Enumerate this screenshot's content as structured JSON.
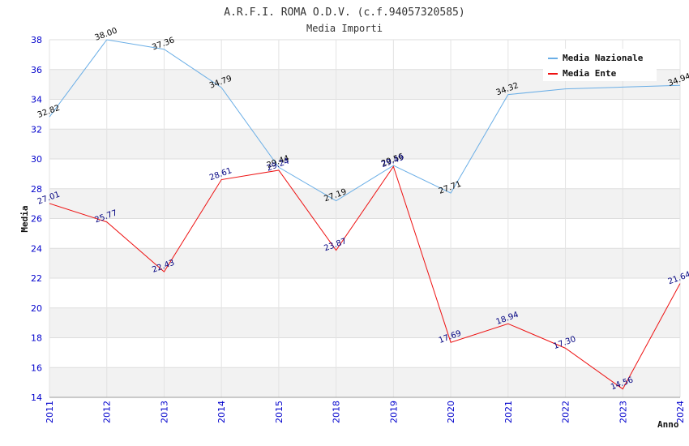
{
  "chart_data": {
    "type": "line",
    "title": "A.R.F.I. ROMA O.D.V. (c.f.94057320585)",
    "subtitle": "Media Importi",
    "xlabel": "Anno",
    "ylabel": "Media",
    "ylim": [
      14,
      38
    ],
    "yticks": [
      14,
      16,
      18,
      20,
      22,
      24,
      26,
      28,
      30,
      32,
      34,
      36,
      38
    ],
    "ytick_labels": [
      "14",
      "16",
      "18",
      "20",
      "22",
      "24",
      "26",
      "28",
      "30",
      "32",
      "34",
      "36",
      "38"
    ],
    "categories": [
      "2011",
      "2012",
      "2013",
      "2014",
      "2015",
      "2018",
      "2019",
      "2020",
      "2021",
      "2022",
      "2023",
      "2024"
    ],
    "grid": true,
    "legend_position": "top-right",
    "series": [
      {
        "name": "Media Nazionale",
        "color": "#6aaee6",
        "label_color": "#000000",
        "values": [
          32.82,
          38.0,
          37.36,
          34.79,
          29.44,
          27.19,
          29.56,
          27.71,
          34.32,
          34.7,
          34.82,
          34.94
        ],
        "labels": [
          "32.82",
          "38.00",
          "37.36",
          "34.79",
          "29.44",
          "27.19",
          "29.56",
          "27.71",
          "34.32",
          "",
          "",
          "34.94"
        ]
      },
      {
        "name": "Media Ente",
        "color": "#ee1111",
        "label_color": "#000080",
        "values": [
          27.01,
          25.77,
          22.43,
          28.61,
          29.24,
          23.87,
          29.49,
          17.69,
          18.94,
          17.3,
          14.56,
          21.64
        ],
        "labels": [
          "27.01",
          "25.77",
          "22.43",
          "28.61",
          "29.24",
          "23.87",
          "29.49",
          "17.69",
          "18.94",
          "17.30",
          "14.56",
          "21.64"
        ]
      }
    ]
  }
}
